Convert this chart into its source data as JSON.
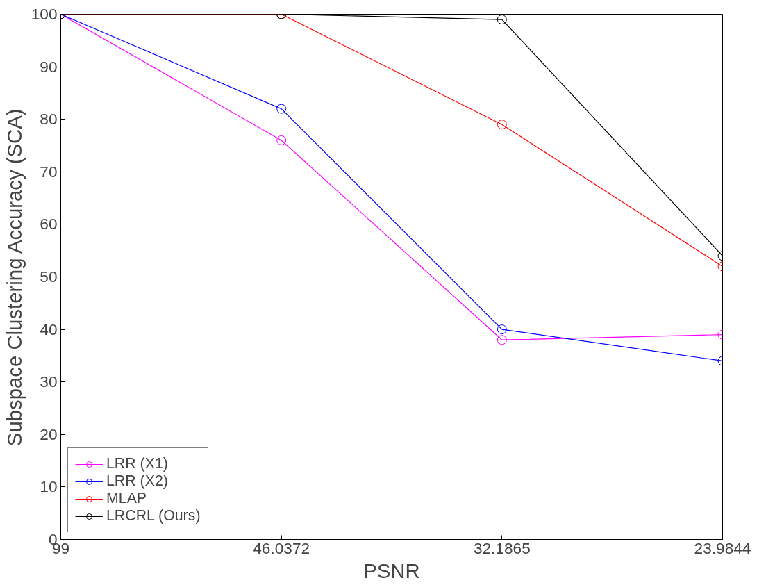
{
  "chart_data": {
    "type": "line",
    "xlabel": "PSNR",
    "ylabel": "Subspace Clustering Accuracy (SCA)",
    "categories": [
      "99",
      "46.0372",
      "32.1865",
      "23.9844"
    ],
    "ylim": [
      0,
      100
    ],
    "yticks": [
      0,
      10,
      20,
      30,
      40,
      50,
      60,
      70,
      80,
      90,
      100
    ],
    "grid": false,
    "legend": "bottom left",
    "marker": "circle",
    "line_style": "solid",
    "series": [
      {
        "name": "LRR (X1)",
        "color": "#ff00ff",
        "values": [
          100,
          76,
          38,
          39
        ]
      },
      {
        "name": "LRR (X2)",
        "color": "#0000ff",
        "values": [
          100,
          82,
          40,
          34
        ]
      },
      {
        "name": "MLAP",
        "color": "#ff0000",
        "values": [
          100,
          100,
          79,
          52
        ]
      },
      {
        "name": "LRCRL (Ours)",
        "color": "#000000",
        "values": [
          100,
          100,
          99,
          54
        ]
      }
    ]
  }
}
